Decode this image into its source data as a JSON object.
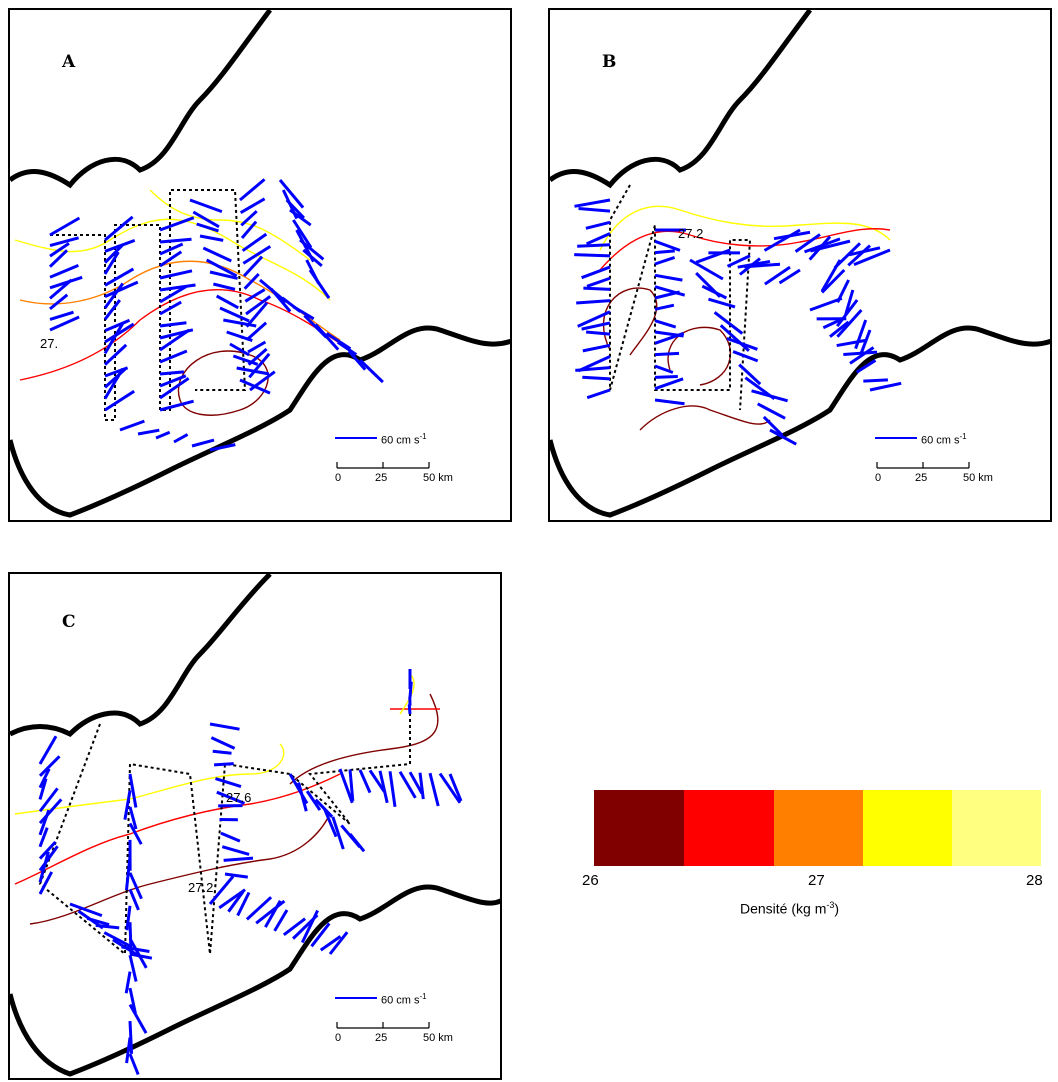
{
  "panels": [
    {
      "letter": "A",
      "contour_label": "27."
    },
    {
      "letter": "B",
      "contour_label": "27.2"
    },
    {
      "letter": "C",
      "contour_label_1": "27.6",
      "contour_label_2": "27.2"
    }
  ],
  "scale": {
    "speed_text": "60 cm s",
    "speed_exponent": "-1",
    "ticks": [
      "0",
      "25",
      "50 km"
    ]
  },
  "legend": {
    "ticks": [
      "26",
      "27",
      "28"
    ],
    "title": "Densité (kg m",
    "title_exponent": "-3",
    "title_close": ")",
    "colors": [
      "#800000",
      "#ff0000",
      "#ff8000",
      "#ffff00",
      "#ffff80"
    ]
  },
  "colors": {
    "coast": "#000000",
    "vectors": "#0000ff",
    "track": "#000000"
  }
}
